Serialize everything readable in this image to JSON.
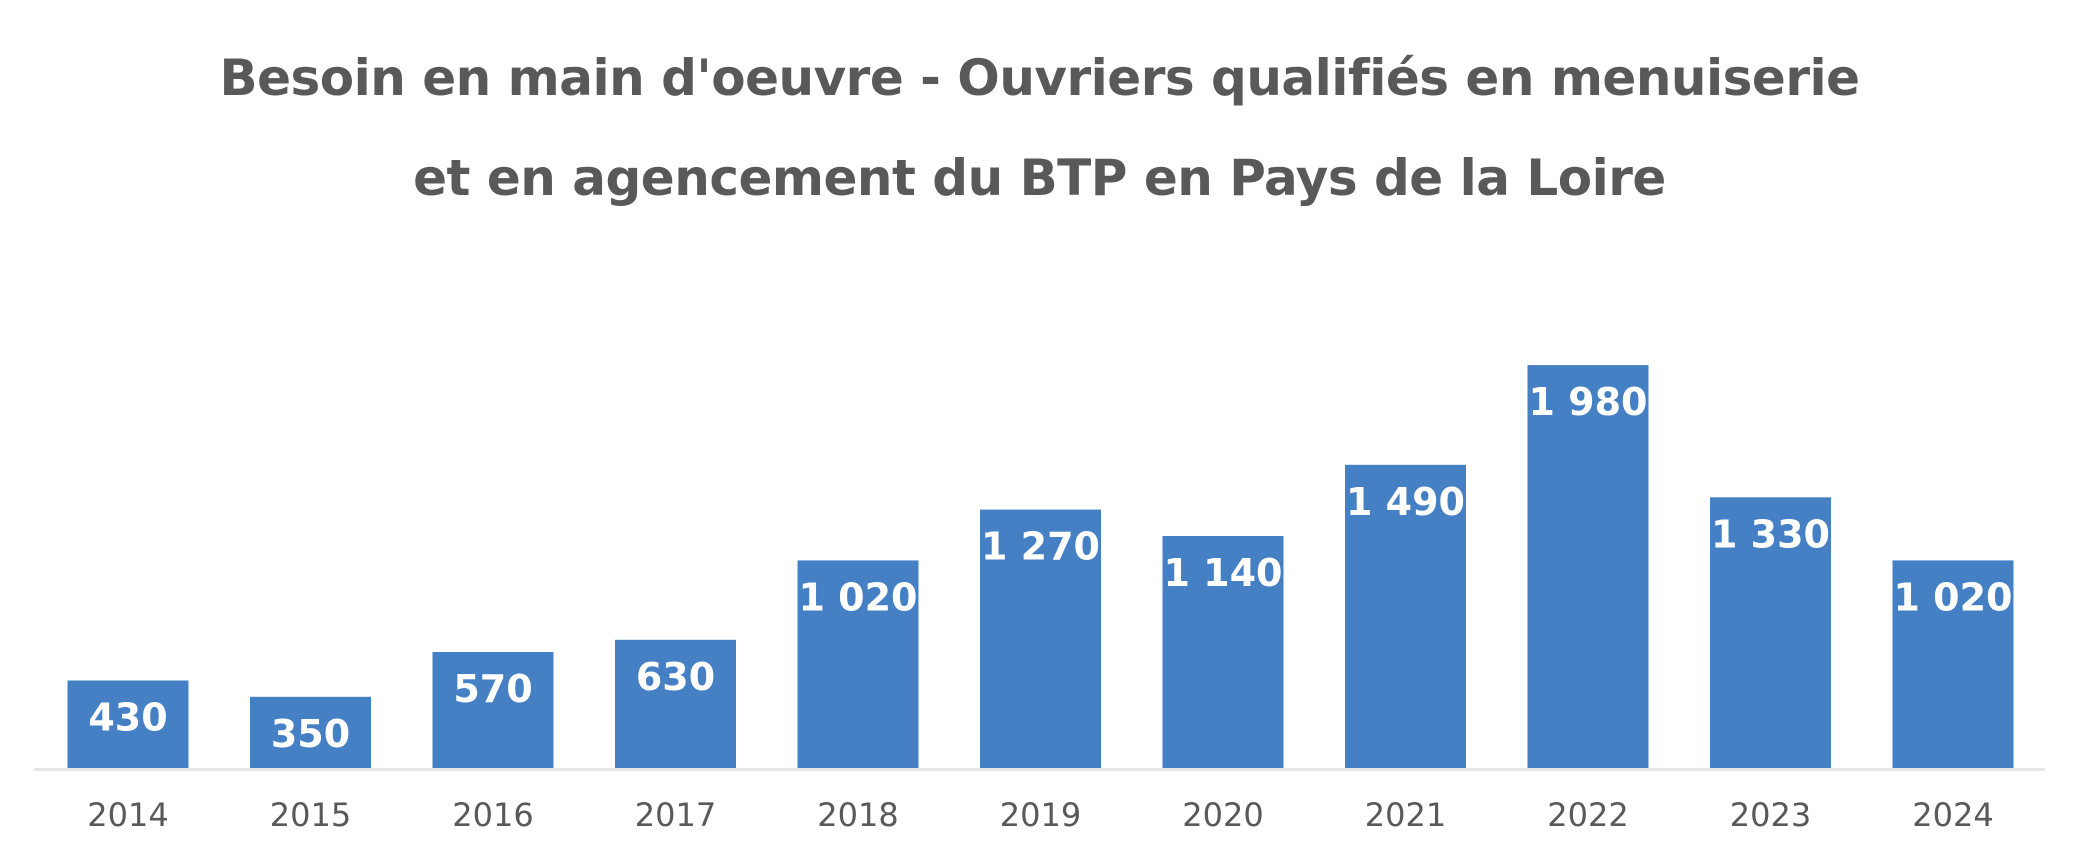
{
  "chart_data": {
    "type": "bar",
    "title_lines": [
      "Besoin en main d'oeuvre - Ouvriers qualifiés en menuiserie",
      "et en agencement du BTP en Pays de la Loire"
    ],
    "categories": [
      "2014",
      "2015",
      "2016",
      "2017",
      "2018",
      "2019",
      "2020",
      "2021",
      "2022",
      "2023",
      "2024"
    ],
    "values": [
      430,
      350,
      570,
      630,
      1020,
      1270,
      1140,
      1490,
      1980,
      1330,
      1020
    ],
    "data_labels": [
      "430",
      "350",
      "570",
      "630",
      "1 020",
      "1 270",
      "1 140",
      "1 490",
      "1 980",
      "1 330",
      "1 020"
    ],
    "ylim": [
      0,
      2000
    ],
    "grid": false,
    "legend": "none",
    "colors": {
      "bar": "#4580C4",
      "title": "#595959",
      "ticks": "#595959",
      "axis": "#E6E6E6",
      "data_label": "#FFFFFF"
    }
  }
}
